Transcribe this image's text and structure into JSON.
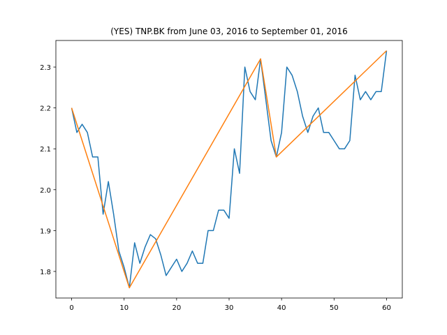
{
  "chart_data": {
    "type": "line",
    "title": "(YES) TNP.BK from June 03, 2016 to September 01, 2016",
    "xlabel": "",
    "ylabel": "",
    "xlim": [
      -3,
      63
    ],
    "ylim": [
      1.735,
      2.365
    ],
    "x_ticks": [
      0,
      10,
      20,
      30,
      40,
      50,
      60
    ],
    "y_ticks": [
      1.8,
      1.9,
      2.0,
      2.1,
      2.2,
      2.3
    ],
    "grid": false,
    "series": [
      {
        "color": "#1f77b4",
        "x": [
          0,
          1,
          2,
          3,
          4,
          5,
          6,
          7,
          8,
          9,
          10,
          11,
          12,
          13,
          14,
          15,
          16,
          17,
          18,
          19,
          20,
          21,
          22,
          23,
          24,
          25,
          26,
          27,
          28,
          29,
          30,
          31,
          32,
          33,
          34,
          35,
          36,
          37,
          38,
          39,
          40,
          41,
          42,
          43,
          44,
          45,
          46,
          47,
          48,
          49,
          50,
          51,
          52,
          53,
          54,
          55,
          56,
          57,
          58,
          59,
          60
        ],
        "y": [
          2.2,
          2.14,
          2.16,
          2.14,
          2.08,
          2.08,
          1.94,
          2.02,
          1.94,
          1.85,
          1.81,
          1.76,
          1.87,
          1.82,
          1.86,
          1.89,
          1.88,
          1.84,
          1.79,
          1.81,
          1.83,
          1.8,
          1.82,
          1.85,
          1.82,
          1.82,
          1.9,
          1.9,
          1.95,
          1.95,
          1.93,
          2.1,
          2.04,
          2.3,
          2.24,
          2.22,
          2.32,
          2.22,
          2.12,
          2.08,
          2.14,
          2.3,
          2.28,
          2.24,
          2.18,
          2.14,
          2.18,
          2.2,
          2.14,
          2.14,
          2.12,
          2.1,
          2.1,
          2.12,
          2.28,
          2.22,
          2.24,
          2.22,
          2.24,
          2.24,
          2.34
        ]
      },
      {
        "color": "#ff7f0e",
        "x": [
          0,
          11,
          36,
          39,
          60
        ],
        "y": [
          2.2,
          1.76,
          2.32,
          2.08,
          2.34
        ]
      }
    ]
  }
}
